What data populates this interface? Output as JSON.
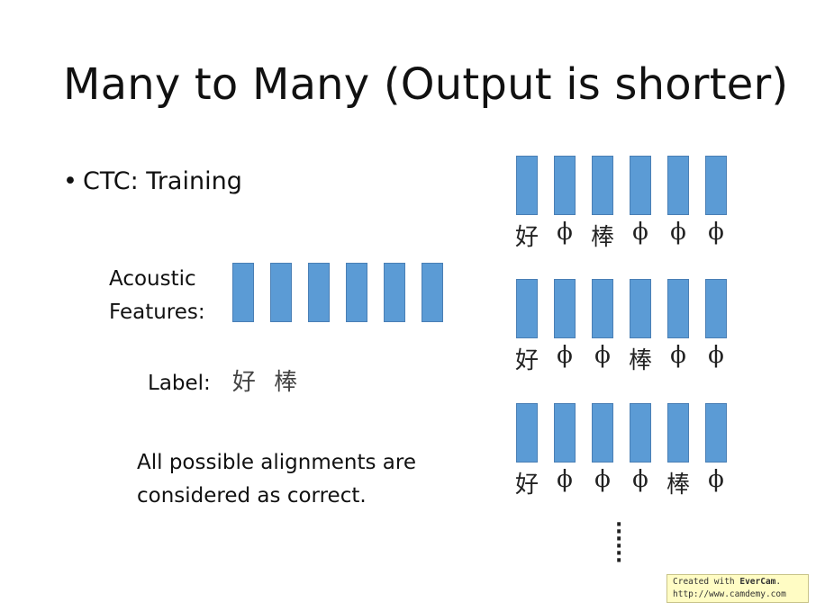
{
  "slide": {
    "title": "Many to Many (Output is shorter)",
    "bullet": "CTC: Training",
    "acoustic_line1": "Acoustic",
    "acoustic_line2": "Features:",
    "feature_count": 6,
    "label_text": "Label:",
    "label_chars": "好 棒",
    "note_line1": "All possible alignments are",
    "note_line2": "considered as correct.",
    "more_indicator": "⋮"
  },
  "alignments": [
    [
      "好",
      "ϕ",
      "棒",
      "ϕ",
      "ϕ",
      "ϕ"
    ],
    [
      "好",
      "ϕ",
      "ϕ",
      "棒",
      "ϕ",
      "ϕ"
    ],
    [
      "好",
      "ϕ",
      "ϕ",
      "ϕ",
      "棒",
      "ϕ"
    ]
  ],
  "watermark": {
    "prefix": "Created with ",
    "brand": "EverCam",
    "suffix": ".",
    "url": "http://www.camdemy.com"
  },
  "colors": {
    "bar_fill": "#5b9bd5",
    "bar_border": "#4a7fb5",
    "watermark_bg": "#fffcc4"
  }
}
